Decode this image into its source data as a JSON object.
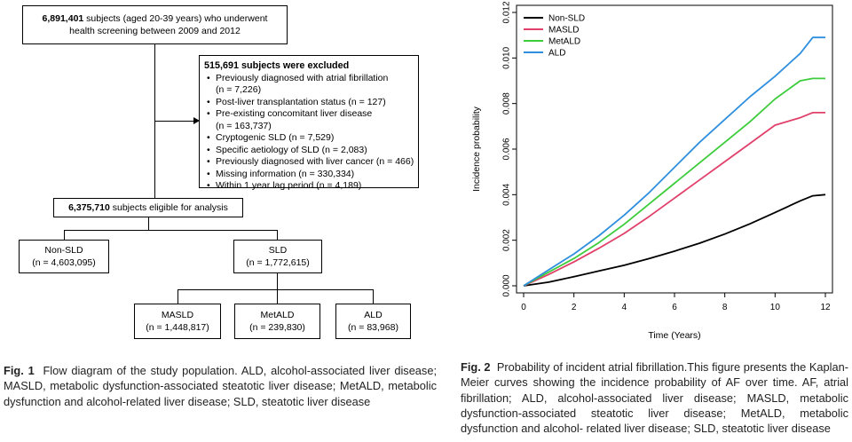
{
  "flow": {
    "top": {
      "count": "6,891,401",
      "text1": " subjects (aged 20-39 years) who underwent",
      "text2": "health screening between 2009 and 2012"
    },
    "excluded": {
      "title": "515,691 subjects were excluded",
      "items": [
        {
          "l1": "Previously diagnosed with atrial fibrillation",
          "l2": "(n = 7,226)"
        },
        {
          "l1": "Post-liver transplantation status (n = 127)",
          "l2": ""
        },
        {
          "l1": "Pre-existing concomitant liver disease",
          "l2": "(n = 163,737)"
        },
        {
          "l1": "Cryptogenic SLD (n = 7,529)",
          "l2": ""
        },
        {
          "l1": "Specific aetiology of SLD (n = 2,083)",
          "l2": ""
        },
        {
          "l1": "Previously diagnosed with liver cancer (n = 466)",
          "l2": ""
        },
        {
          "l1": "Missing information (n = 330,334)",
          "l2": ""
        },
        {
          "l1": "Within 1 year lag period (n = 4,189)",
          "l2": ""
        }
      ]
    },
    "eligible": {
      "count": "6,375,710",
      "text": " subjects eligible for analysis"
    },
    "nonsld": {
      "label": "Non-SLD",
      "n": "(n = 4,603,095)"
    },
    "sld": {
      "label": "SLD",
      "n": "(n = 1,772,615)"
    },
    "masld": {
      "label": "MASLD",
      "n": "(n = 1,448,817)"
    },
    "metald": {
      "label": "MetALD",
      "n": "(n = 239,830)"
    },
    "ald": {
      "label": "ALD",
      "n": "(n = 83,968)"
    }
  },
  "caption1": {
    "label": "Fig. 1",
    "text": "Flow diagram of the study population. ALD, alcohol-associated liver disease; MASLD, metabolic dysfunction-associated steatotic liver disease; MetALD, metabolic dysfunction and alcohol-related liver disease; SLD, steatotic liver disease"
  },
  "caption2": {
    "label": "Fig. 2",
    "text": "Probability of incident atrial fibrillation.This figure presents the Kaplan-Meier curves showing the incidence probability of AF over time. AF, atrial fibrillation; ALD, alcohol-associated liver disease; MASLD, metabolic dysfunction-associated steatotic liver disease; MetALD, metabolic dysfunction and alcohol- related liver disease; SLD, steatotic liver disease"
  },
  "chart_data": {
    "type": "line",
    "title": "",
    "xlabel": "Time (Years)",
    "ylabel": "Incidence probability",
    "xlim": [
      0,
      12
    ],
    "ylim": [
      0,
      0.012
    ],
    "xticks": [
      0,
      2,
      4,
      6,
      8,
      10,
      12
    ],
    "yticks": [
      "0.000",
      "0.002",
      "0.004",
      "0.006",
      "0.008",
      "0.010",
      "0.012"
    ],
    "legend_position": "top-left",
    "x": [
      0,
      1,
      2,
      3,
      4,
      5,
      6,
      7,
      8,
      9,
      10,
      11,
      11.5,
      12
    ],
    "series": [
      {
        "name": "Non-SLD",
        "color": "#000000",
        "values": [
          0,
          0.00016,
          0.0004,
          0.00065,
          0.0009,
          0.0012,
          0.00152,
          0.00187,
          0.00227,
          0.00272,
          0.00322,
          0.00373,
          0.00395,
          0.004
        ]
      },
      {
        "name": "MASLD",
        "color": "#e0406a",
        "values": [
          0,
          0.0005,
          0.00105,
          0.00165,
          0.0023,
          0.00305,
          0.00385,
          0.00465,
          0.00545,
          0.00625,
          0.00705,
          0.00738,
          0.0076,
          0.0076
        ]
      },
      {
        "name": "MetALD",
        "color": "#3ccc3c",
        "values": [
          0,
          0.0006,
          0.0012,
          0.0019,
          0.0027,
          0.0036,
          0.0045,
          0.0054,
          0.0063,
          0.0072,
          0.0082,
          0.009,
          0.0091,
          0.0091
        ]
      },
      {
        "name": "ALD",
        "color": "#2f8fde",
        "values": [
          0,
          0.0007,
          0.0014,
          0.0022,
          0.0031,
          0.0041,
          0.0052,
          0.0063,
          0.0073,
          0.0083,
          0.0092,
          0.0102,
          0.0109,
          0.0109
        ]
      }
    ]
  }
}
